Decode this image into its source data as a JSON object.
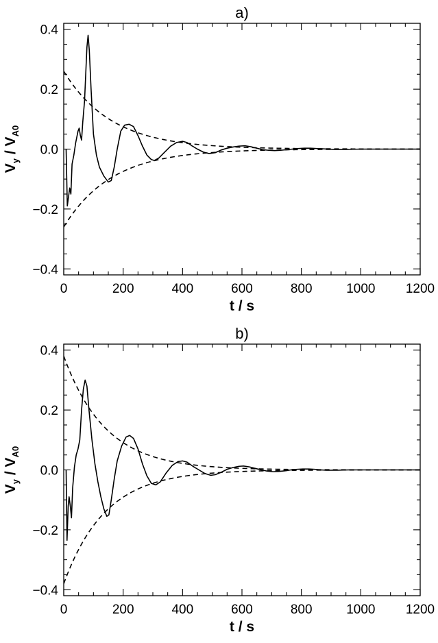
{
  "chart_data": [
    {
      "type": "line",
      "title": "a)",
      "xlabel": "t / s",
      "ylabel": {
        "v": "V",
        "v_sub": "y",
        "sep": " / ",
        "a": "V",
        "a_sub": "A0"
      },
      "xlim": [
        0,
        1200
      ],
      "ylim": [
        -0.42,
        0.42
      ],
      "xticks": [
        0,
        200,
        400,
        600,
        800,
        1000,
        1200
      ],
      "xtick_labels": [
        "0",
        "200",
        "400",
        "600",
        "800",
        "1000",
        "1200"
      ],
      "yticks": [
        -0.4,
        -0.2,
        0.0,
        0.2,
        0.4
      ],
      "ytick_labels": [
        "−0.4",
        "−0.2",
        "0.0",
        "0.2",
        "0.4"
      ],
      "grid": false,
      "series": [
        {
          "style": "solid",
          "points": [
            [
              8,
              0.0
            ],
            [
              12,
              -0.19
            ],
            [
              16,
              -0.16
            ],
            [
              20,
              -0.13
            ],
            [
              24,
              -0.15
            ],
            [
              28,
              -0.05
            ],
            [
              34,
              -0.02
            ],
            [
              40,
              0.02
            ],
            [
              48,
              0.06
            ],
            [
              52,
              0.07
            ],
            [
              56,
              0.045
            ],
            [
              60,
              0.03
            ],
            [
              64,
              0.09
            ],
            [
              70,
              0.16
            ],
            [
              74,
              0.25
            ],
            [
              78,
              0.34
            ],
            [
              82,
              0.38
            ],
            [
              86,
              0.33
            ],
            [
              92,
              0.2
            ],
            [
              100,
              0.05
            ],
            [
              110,
              -0.02
            ],
            [
              120,
              -0.06
            ],
            [
              135,
              -0.09
            ],
            [
              150,
              -0.11
            ],
            [
              160,
              -0.105
            ],
            [
              170,
              -0.06
            ],
            [
              180,
              0.0
            ],
            [
              192,
              0.06
            ],
            [
              205,
              0.08
            ],
            [
              220,
              0.083
            ],
            [
              235,
              0.075
            ],
            [
              250,
              0.045
            ],
            [
              265,
              0.01
            ],
            [
              280,
              -0.02
            ],
            [
              295,
              -0.035
            ],
            [
              305,
              -0.038
            ],
            [
              320,
              -0.03
            ],
            [
              340,
              -0.01
            ],
            [
              360,
              0.01
            ],
            [
              380,
              0.022
            ],
            [
              400,
              0.026
            ],
            [
              415,
              0.022
            ],
            [
              430,
              0.012
            ],
            [
              450,
              0.0
            ],
            [
              470,
              -0.01
            ],
            [
              490,
              -0.015
            ],
            [
              510,
              -0.012
            ],
            [
              530,
              -0.003
            ],
            [
              550,
              0.003
            ],
            [
              570,
              0.007
            ],
            [
              590,
              0.01
            ],
            [
              610,
              0.011
            ],
            [
              630,
              0.008
            ],
            [
              650,
              0.003
            ],
            [
              670,
              -0.002
            ],
            [
              690,
              -0.004
            ],
            [
              710,
              -0.005
            ],
            [
              730,
              -0.004
            ],
            [
              750,
              -0.002
            ],
            [
              770,
              0.0
            ],
            [
              790,
              0.002
            ],
            [
              810,
              0.003
            ],
            [
              830,
              0.003
            ],
            [
              850,
              0.002
            ],
            [
              870,
              0.001
            ],
            [
              890,
              0.0
            ],
            [
              910,
              -0.001
            ],
            [
              950,
              -0.001
            ],
            [
              1000,
              0.0
            ],
            [
              1100,
              0.0
            ],
            [
              1200,
              0.0
            ]
          ]
        },
        {
          "style": "dashed",
          "envelope": {
            "amplitude": 0.26,
            "decay_time_s": 160,
            "sign": 1
          },
          "x_range": [
            0,
            1200
          ]
        },
        {
          "style": "dashed",
          "envelope": {
            "amplitude": 0.26,
            "decay_time_s": 160,
            "sign": -1
          },
          "x_range": [
            0,
            1200
          ]
        }
      ]
    },
    {
      "type": "line",
      "title": "b)",
      "xlabel": "t / s",
      "ylabel": {
        "v": "V",
        "v_sub": "y",
        "sep": " / ",
        "a": "V",
        "a_sub": "A0"
      },
      "xlim": [
        0,
        1200
      ],
      "ylim": [
        -0.42,
        0.42
      ],
      "xticks": [
        0,
        200,
        400,
        600,
        800,
        1000,
        1200
      ],
      "xtick_labels": [
        "0",
        "200",
        "400",
        "600",
        "800",
        "1000",
        "1200"
      ],
      "yticks": [
        -0.4,
        -0.2,
        0.0,
        0.2,
        0.4
      ],
      "ytick_labels": [
        "−0.4",
        "−0.2",
        "0.0",
        "0.2",
        "0.4"
      ],
      "grid": false,
      "series": [
        {
          "style": "solid",
          "points": [
            [
              8,
              0.0
            ],
            [
              11,
              -0.235
            ],
            [
              15,
              -0.12
            ],
            [
              18,
              -0.09
            ],
            [
              22,
              -0.12
            ],
            [
              26,
              -0.16
            ],
            [
              30,
              -0.06
            ],
            [
              36,
              0.01
            ],
            [
              42,
              0.05
            ],
            [
              48,
              0.07
            ],
            [
              54,
              0.1
            ],
            [
              60,
              0.2
            ],
            [
              66,
              0.27
            ],
            [
              72,
              0.3
            ],
            [
              78,
              0.28
            ],
            [
              85,
              0.2
            ],
            [
              95,
              0.1
            ],
            [
              105,
              0.02
            ],
            [
              115,
              -0.04
            ],
            [
              125,
              -0.09
            ],
            [
              135,
              -0.13
            ],
            [
              145,
              -0.155
            ],
            [
              152,
              -0.15
            ],
            [
              160,
              -0.1
            ],
            [
              170,
              -0.03
            ],
            [
              180,
              0.03
            ],
            [
              195,
              0.08
            ],
            [
              210,
              0.11
            ],
            [
              222,
              0.115
            ],
            [
              235,
              0.105
            ],
            [
              250,
              0.07
            ],
            [
              265,
              0.02
            ],
            [
              280,
              -0.02
            ],
            [
              295,
              -0.045
            ],
            [
              310,
              -0.05
            ],
            [
              325,
              -0.04
            ],
            [
              345,
              -0.01
            ],
            [
              365,
              0.015
            ],
            [
              385,
              0.028
            ],
            [
              400,
              0.03
            ],
            [
              415,
              0.026
            ],
            [
              435,
              0.012
            ],
            [
              455,
              0.0
            ],
            [
              475,
              -0.012
            ],
            [
              495,
              -0.018
            ],
            [
              510,
              -0.016
            ],
            [
              530,
              -0.008
            ],
            [
              550,
              0.002
            ],
            [
              570,
              0.008
            ],
            [
              590,
              0.012
            ],
            [
              605,
              0.013
            ],
            [
              625,
              0.01
            ],
            [
              645,
              0.005
            ],
            [
              665,
              0.0
            ],
            [
              685,
              -0.004
            ],
            [
              705,
              -0.006
            ],
            [
              725,
              -0.005
            ],
            [
              745,
              -0.003
            ],
            [
              765,
              0.0
            ],
            [
              785,
              0.002
            ],
            [
              805,
              0.003
            ],
            [
              825,
              0.003
            ],
            [
              845,
              0.002
            ],
            [
              865,
              0.0
            ],
            [
              885,
              -0.001
            ],
            [
              920,
              -0.001
            ],
            [
              960,
              0.0
            ],
            [
              1100,
              0.0
            ],
            [
              1200,
              0.0
            ]
          ]
        },
        {
          "style": "dashed",
          "envelope": {
            "amplitude": 0.38,
            "decay_time_s": 140,
            "sign": 1
          },
          "x_range": [
            0,
            1200
          ]
        },
        {
          "style": "dashed",
          "envelope": {
            "amplitude": 0.38,
            "decay_time_s": 140,
            "sign": -1
          },
          "x_range": [
            0,
            1200
          ]
        }
      ]
    }
  ]
}
